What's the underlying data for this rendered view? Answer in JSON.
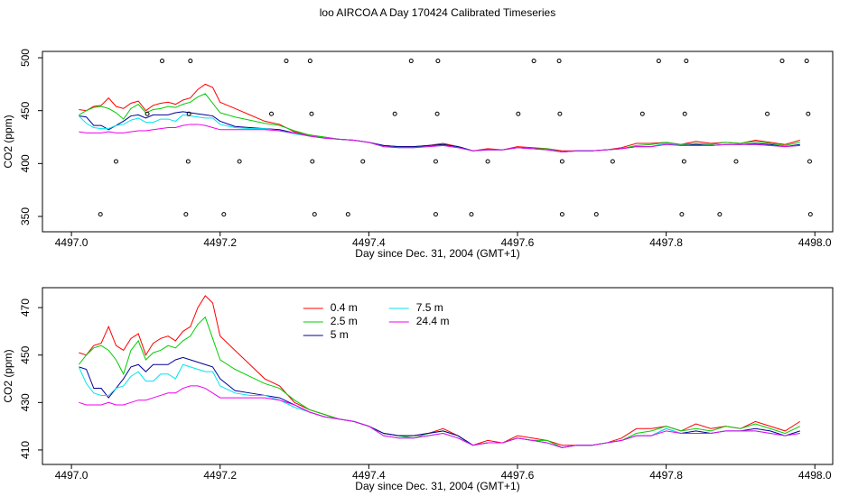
{
  "chart_data": [
    {
      "type": "line",
      "title": "loo AIRCOA A  Day 170424  Calibrated Timeseries",
      "x_label": "Day since Dec. 31, 2004 (GMT+1)",
      "y_label": "CO2 (ppm)",
      "xlim": [
        4496.961,
        4498.024
      ],
      "ylim": [
        335.5,
        506
      ],
      "xticks": [
        {
          "value": 4497,
          "label": "4497.0"
        },
        4497.2,
        4497.4,
        4497.6,
        4497.8,
        {
          "value": 4498,
          "label": "4498.0"
        }
      ],
      "yticks": [
        350,
        400,
        450,
        500
      ],
      "x": [
        4497.01,
        4497.02,
        4497.03,
        4497.04,
        4497.05,
        4497.06,
        4497.07,
        4497.08,
        4497.09,
        4497.1,
        4497.11,
        4497.12,
        4497.13,
        4497.14,
        4497.15,
        4497.16,
        4497.17,
        4497.18,
        4497.19,
        4497.2,
        4497.22,
        4497.24,
        4497.26,
        4497.28,
        4497.3,
        4497.32,
        4497.34,
        4497.36,
        4497.38,
        4497.4,
        4497.42,
        4497.44,
        4497.46,
        4497.48,
        4497.5,
        4497.52,
        4497.54,
        4497.56,
        4497.58,
        4497.6,
        4497.62,
        4497.64,
        4497.66,
        4497.68,
        4497.7,
        4497.72,
        4497.74,
        4497.76,
        4497.78,
        4497.8,
        4497.82,
        4497.84,
        4497.86,
        4497.88,
        4497.9,
        4497.92,
        4497.94,
        4497.96,
        4497.98
      ],
      "series": [
        {
          "name": "0.4 m",
          "color": "#ff0000",
          "values": [
            451,
            450,
            454,
            455,
            462,
            454,
            452,
            457,
            459,
            450,
            455,
            457,
            458,
            456,
            460,
            462,
            470,
            475,
            472,
            458,
            452,
            446,
            440,
            437,
            430,
            427,
            425,
            423,
            422,
            420,
            417,
            416,
            416,
            417,
            419,
            416,
            412,
            414,
            413,
            416,
            415,
            414,
            412,
            412,
            412,
            413,
            415,
            419,
            419,
            420,
            418,
            421,
            419,
            420,
            419,
            422,
            420,
            418,
            422
          ]
        },
        {
          "name": "2.5 m",
          "color": "#00cd00",
          "values": [
            446,
            450,
            453,
            454,
            452,
            448,
            442,
            452,
            456,
            448,
            451,
            452,
            454,
            453,
            456,
            458,
            463,
            466,
            457,
            448,
            444,
            441,
            438,
            436,
            431,
            427,
            425,
            423,
            422,
            420,
            417,
            416,
            415,
            417,
            418,
            416,
            412,
            413,
            413,
            415,
            414,
            414,
            411,
            412,
            412,
            413,
            414,
            417,
            418,
            420,
            418,
            419,
            418,
            420,
            419,
            421,
            419,
            417,
            420
          ]
        },
        {
          "name": "5 m",
          "color": "#000099",
          "values": [
            445,
            444,
            436,
            436,
            432,
            436,
            440,
            445,
            446,
            443,
            446,
            446,
            446,
            448,
            449,
            448,
            447,
            446,
            445,
            440,
            435,
            434,
            433,
            432,
            429,
            426,
            424,
            423,
            422,
            420,
            417,
            416,
            416,
            417,
            418,
            416,
            412,
            413,
            413,
            415,
            414,
            413,
            411,
            412,
            412,
            413,
            414,
            416,
            416,
            419,
            417,
            418,
            417,
            418,
            418,
            419,
            418,
            416,
            418
          ]
        },
        {
          "name": "7.5 m",
          "color": "#00e5ee",
          "values": [
            445,
            438,
            434,
            433,
            433,
            436,
            437,
            441,
            443,
            439,
            439,
            442,
            442,
            440,
            446,
            445,
            444,
            443,
            443,
            437,
            434,
            433,
            433,
            431,
            428,
            426,
            424,
            423,
            422,
            420,
            416,
            415,
            415,
            416,
            417,
            415,
            412,
            413,
            413,
            415,
            414,
            413,
            411,
            412,
            412,
            413,
            414,
            416,
            416,
            419,
            417,
            417,
            417,
            418,
            418,
            418,
            417,
            416,
            417
          ]
        },
        {
          "name": "24.4 m",
          "color": "#ee00ee",
          "values": [
            430,
            429,
            429,
            429,
            430,
            429,
            429,
            430,
            431,
            431,
            432,
            433,
            434,
            434,
            436,
            437,
            437,
            436,
            434,
            432,
            432,
            432,
            432,
            431,
            429,
            426,
            424,
            423,
            422,
            420,
            416,
            415,
            415,
            416,
            417,
            415,
            412,
            413,
            413,
            415,
            414,
            413,
            411,
            412,
            412,
            413,
            414,
            416,
            416,
            418,
            417,
            417,
            417,
            418,
            418,
            418,
            417,
            416,
            417
          ]
        }
      ],
      "points": {
        "x": [
          4497.039,
          4497.154,
          4497.205,
          4497.327,
          4497.372,
          4497.49,
          4497.538,
          4497.66,
          4497.706,
          4497.821,
          4497.872,
          4497.994,
          4497.06,
          4497.157,
          4497.226,
          4497.324,
          4497.392,
          4497.49,
          4497.56,
          4497.66,
          4497.728,
          4497.824,
          4497.894,
          4497.993,
          4497.102,
          4497.158,
          4497.269,
          4497.323,
          4497.435,
          4497.492,
          4497.601,
          4497.657,
          4497.768,
          4497.825,
          4497.936,
          4497.991,
          4497.122,
          4497.16,
          4497.289,
          4497.321,
          4497.457,
          4497.493,
          4497.622,
          4497.656,
          4497.79,
          4497.827,
          4497.956,
          4497.989
        ],
        "y": [
          352,
          352,
          352,
          352,
          352,
          352,
          352,
          352,
          352,
          352,
          352,
          352,
          402,
          402,
          402,
          402,
          402,
          402,
          402,
          402,
          402,
          402,
          402,
          402,
          447,
          447,
          447,
          447,
          447,
          447,
          447,
          447,
          447,
          447,
          447,
          447,
          497,
          497,
          497,
          497,
          497,
          497,
          497,
          497,
          497,
          497,
          497,
          497
        ]
      }
    },
    {
      "type": "line",
      "x_label": "Day since Dec. 31, 2004 (GMT+1)",
      "y_label": "CO2 (ppm)",
      "legend": "top",
      "xlim": [
        4496.961,
        4498.024
      ],
      "ylim": [
        403.9,
        478.4
      ],
      "xticks": [
        {
          "value": 4497,
          "label": "4497.0"
        },
        4497.2,
        4497.4,
        4497.6,
        4497.8,
        {
          "value": 4498,
          "label": "4498.0"
        }
      ],
      "yticks": [
        410,
        430,
        450,
        470
      ],
      "x": [
        4497.01,
        4497.02,
        4497.03,
        4497.04,
        4497.05,
        4497.06,
        4497.07,
        4497.08,
        4497.09,
        4497.1,
        4497.11,
        4497.12,
        4497.13,
        4497.14,
        4497.15,
        4497.16,
        4497.17,
        4497.18,
        4497.19,
        4497.2,
        4497.22,
        4497.24,
        4497.26,
        4497.28,
        4497.3,
        4497.32,
        4497.34,
        4497.36,
        4497.38,
        4497.4,
        4497.42,
        4497.44,
        4497.46,
        4497.48,
        4497.5,
        4497.52,
        4497.54,
        4497.56,
        4497.58,
        4497.6,
        4497.62,
        4497.64,
        4497.66,
        4497.68,
        4497.7,
        4497.72,
        4497.74,
        4497.76,
        4497.78,
        4497.8,
        4497.82,
        4497.84,
        4497.86,
        4497.88,
        4497.9,
        4497.92,
        4497.94,
        4497.96,
        4497.98
      ],
      "series": [
        {
          "name": "0.4 m",
          "color": "#ff0000",
          "values": [
            451,
            450,
            454,
            455,
            462,
            454,
            452,
            457,
            459,
            450,
            455,
            457,
            458,
            456,
            460,
            462,
            470,
            475,
            472,
            458,
            452,
            446,
            440,
            437,
            430,
            427,
            425,
            423,
            422,
            420,
            417,
            416,
            416,
            417,
            419,
            416,
            412,
            414,
            413,
            416,
            415,
            414,
            412,
            412,
            412,
            413,
            415,
            419,
            419,
            420,
            418,
            421,
            419,
            420,
            419,
            422,
            420,
            418,
            422
          ]
        },
        {
          "name": "2.5 m",
          "color": "#00cd00",
          "values": [
            446,
            450,
            453,
            454,
            452,
            448,
            442,
            452,
            456,
            448,
            451,
            452,
            454,
            453,
            456,
            458,
            463,
            466,
            457,
            448,
            444,
            441,
            438,
            436,
            431,
            427,
            425,
            423,
            422,
            420,
            417,
            416,
            415,
            417,
            418,
            416,
            412,
            413,
            413,
            415,
            414,
            414,
            411,
            412,
            412,
            413,
            414,
            417,
            418,
            420,
            418,
            419,
            418,
            420,
            419,
            421,
            419,
            417,
            420
          ]
        },
        {
          "name": "5 m",
          "color": "#000099",
          "values": [
            445,
            444,
            436,
            436,
            432,
            436,
            440,
            445,
            446,
            443,
            446,
            446,
            446,
            448,
            449,
            448,
            447,
            446,
            445,
            440,
            435,
            434,
            433,
            432,
            429,
            426,
            424,
            423,
            422,
            420,
            417,
            416,
            416,
            417,
            418,
            416,
            412,
            413,
            413,
            415,
            414,
            413,
            411,
            412,
            412,
            413,
            414,
            416,
            416,
            419,
            417,
            418,
            417,
            418,
            418,
            419,
            418,
            416,
            418
          ]
        },
        {
          "name": "7.5 m",
          "color": "#00e5ee",
          "values": [
            445,
            438,
            434,
            433,
            433,
            436,
            437,
            441,
            443,
            439,
            439,
            442,
            442,
            440,
            446,
            445,
            444,
            443,
            443,
            437,
            434,
            433,
            433,
            431,
            428,
            426,
            424,
            423,
            422,
            420,
            416,
            415,
            415,
            416,
            417,
            415,
            412,
            413,
            413,
            415,
            414,
            413,
            411,
            412,
            412,
            413,
            414,
            416,
            416,
            419,
            417,
            417,
            417,
            418,
            418,
            418,
            417,
            416,
            417
          ]
        },
        {
          "name": "24.4 m",
          "color": "#ee00ee",
          "values": [
            430,
            429,
            429,
            429,
            430,
            429,
            429,
            430,
            431,
            431,
            432,
            433,
            434,
            434,
            436,
            437,
            437,
            436,
            434,
            432,
            432,
            432,
            432,
            431,
            429,
            426,
            424,
            423,
            422,
            420,
            416,
            415,
            415,
            416,
            417,
            415,
            412,
            413,
            413,
            415,
            414,
            413,
            411,
            412,
            412,
            413,
            414,
            416,
            416,
            418,
            417,
            417,
            417,
            418,
            418,
            418,
            417,
            416,
            417
          ]
        }
      ]
    }
  ]
}
